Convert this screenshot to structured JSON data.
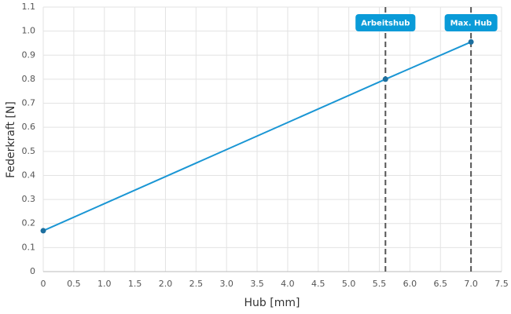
{
  "chart_data": {
    "type": "line",
    "x_label": "Hub [mm]",
    "y_label": "Federkraft [N]",
    "x": [
      0,
      5.6,
      7
    ],
    "series": [
      {
        "name": "Federkraft",
        "color": "#1a96d4",
        "marker_color": "#1c6f9f",
        "values": [
          0.17,
          0.8,
          0.955
        ]
      }
    ],
    "annotations": [
      {
        "x": 5.6,
        "label": "Arbeitshub"
      },
      {
        "x": 7,
        "label": "Max. Hub"
      }
    ],
    "annotation_color": "#0a9bd8",
    "xlim": [
      0,
      7.5
    ],
    "xticks": [
      0,
      0.5,
      {
        "value": 1,
        "label": "1.0"
      },
      1.5,
      {
        "value": 2,
        "label": "2.0"
      },
      2.5,
      {
        "value": 3,
        "label": "3.0"
      },
      3.5,
      {
        "value": 4,
        "label": "4.0"
      },
      4.5,
      {
        "value": 5,
        "label": "5.0"
      },
      5.5,
      {
        "value": 6,
        "label": "6.0"
      },
      6.5,
      {
        "value": 7,
        "label": "7.0"
      },
      7.5
    ],
    "ylim": [
      0,
      1.1
    ],
    "yticks": [
      0,
      0.1,
      0.2,
      0.3,
      0.4,
      0.5,
      0.6,
      0.7,
      0.8,
      0.9,
      {
        "value": 1,
        "label": "1.0"
      },
      1.1
    ],
    "grid": true
  }
}
